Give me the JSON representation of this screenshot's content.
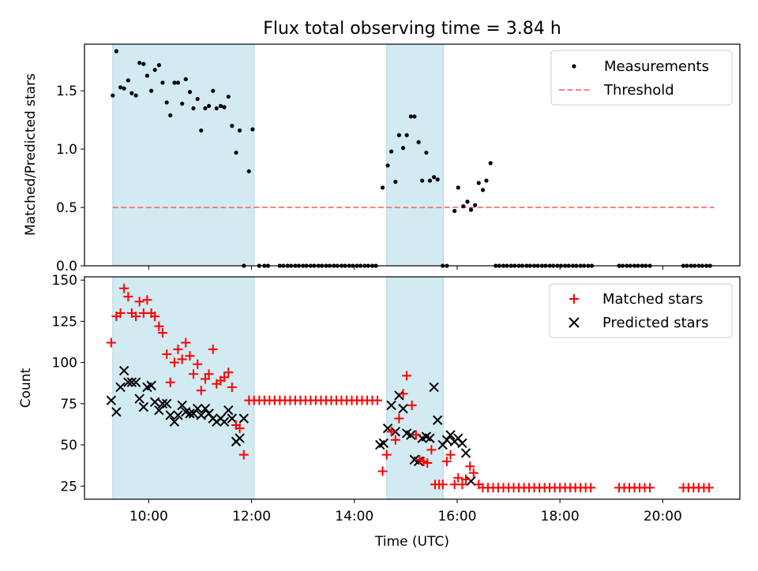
{
  "chart_data": {
    "type": "scatter",
    "title": "Flux total observing time = 3.84 h",
    "xlabel": "Time (UTC)",
    "x_unit": "hours UTC",
    "xlim": [
      8.75,
      21.5
    ],
    "x_ticks": [
      10,
      12,
      14,
      16,
      18,
      20
    ],
    "x_tick_labels": [
      "10:00",
      "12:00",
      "14:00",
      "16:00",
      "18:00",
      "20:00"
    ],
    "shaded_intervals": [
      [
        9.3,
        12.05
      ],
      [
        14.63,
        15.73
      ]
    ],
    "shade_color": "#add8e6",
    "top": {
      "ylabel": "Matched/Predicted stars",
      "ylim": [
        0,
        1.9
      ],
      "y_ticks": [
        0,
        0.5,
        1.0,
        1.5
      ],
      "y_tick_labels": [
        "0.0",
        "0.5",
        "1.0",
        "1.5"
      ],
      "threshold": {
        "value": 0.5,
        "x_range": [
          9.3,
          21.0
        ],
        "color": "#ff7f7f"
      },
      "legend": {
        "position": "upper-right",
        "measurements_label": "Measurements",
        "threshold_label": "Threshold"
      },
      "measurements": [
        [
          9.3,
          1.46
        ],
        [
          9.37,
          1.84
        ],
        [
          9.45,
          1.53
        ],
        [
          9.52,
          1.52
        ],
        [
          9.6,
          1.59
        ],
        [
          9.67,
          1.48
        ],
        [
          9.75,
          1.46
        ],
        [
          9.82,
          1.74
        ],
        [
          9.9,
          1.73
        ],
        [
          9.97,
          1.63
        ],
        [
          10.05,
          1.5
        ],
        [
          10.12,
          1.68
        ],
        [
          10.2,
          1.72
        ],
        [
          10.27,
          1.57
        ],
        [
          10.35,
          1.4
        ],
        [
          10.42,
          1.29
        ],
        [
          10.5,
          1.57
        ],
        [
          10.57,
          1.57
        ],
        [
          10.65,
          1.39
        ],
        [
          10.72,
          1.6
        ],
        [
          10.8,
          1.49
        ],
        [
          10.87,
          1.35
        ],
        [
          10.95,
          1.43
        ],
        [
          11.02,
          1.16
        ],
        [
          11.1,
          1.35
        ],
        [
          11.17,
          1.37
        ],
        [
          11.25,
          1.5
        ],
        [
          11.32,
          1.35
        ],
        [
          11.4,
          1.37
        ],
        [
          11.47,
          1.36
        ],
        [
          11.55,
          1.45
        ],
        [
          11.62,
          1.2
        ],
        [
          11.7,
          0.97
        ],
        [
          11.77,
          1.16
        ],
        [
          11.85,
          0.0
        ],
        [
          11.95,
          0.81
        ],
        [
          12.02,
          1.17
        ],
        [
          12.15,
          0.0
        ],
        [
          12.25,
          0.0
        ],
        [
          12.32,
          0.0
        ],
        [
          12.55,
          0.0
        ],
        [
          12.62,
          0.0
        ],
        [
          12.7,
          0.0
        ],
        [
          12.77,
          0.0
        ],
        [
          12.85,
          0.0
        ],
        [
          12.92,
          0.0
        ],
        [
          13.0,
          0.0
        ],
        [
          13.07,
          0.0
        ],
        [
          13.15,
          0.0
        ],
        [
          13.22,
          0.0
        ],
        [
          13.3,
          0.0
        ],
        [
          13.37,
          0.0
        ],
        [
          13.45,
          0.0
        ],
        [
          13.52,
          0.0
        ],
        [
          13.6,
          0.0
        ],
        [
          13.67,
          0.0
        ],
        [
          13.75,
          0.0
        ],
        [
          13.82,
          0.0
        ],
        [
          13.9,
          0.0
        ],
        [
          13.97,
          0.0
        ],
        [
          14.05,
          0.0
        ],
        [
          14.12,
          0.0
        ],
        [
          14.2,
          0.0
        ],
        [
          14.27,
          0.0
        ],
        [
          14.35,
          0.0
        ],
        [
          14.42,
          0.0
        ],
        [
          14.55,
          0.67
        ],
        [
          14.65,
          0.86
        ],
        [
          14.72,
          0.98
        ],
        [
          14.8,
          0.72
        ],
        [
          14.87,
          1.12
        ],
        [
          14.95,
          1.01
        ],
        [
          15.02,
          1.12
        ],
        [
          15.1,
          1.28
        ],
        [
          15.17,
          1.28
        ],
        [
          15.25,
          1.06
        ],
        [
          15.32,
          0.73
        ],
        [
          15.4,
          0.97
        ],
        [
          15.47,
          0.73
        ],
        [
          15.55,
          0.76
        ],
        [
          15.62,
          0.74
        ],
        [
          15.72,
          0.0
        ],
        [
          15.8,
          0.0
        ],
        [
          15.95,
          0.47
        ],
        [
          16.02,
          0.67
        ],
        [
          16.12,
          0.51
        ],
        [
          16.2,
          0.55
        ],
        [
          16.27,
          0.48
        ],
        [
          16.35,
          0.52
        ],
        [
          16.42,
          0.71
        ],
        [
          16.5,
          0.65
        ],
        [
          16.57,
          0.73
        ],
        [
          16.65,
          0.88
        ],
        [
          16.75,
          0.0
        ],
        [
          16.82,
          0.0
        ],
        [
          16.9,
          0.0
        ],
        [
          16.97,
          0.0
        ],
        [
          17.05,
          0.0
        ],
        [
          17.12,
          0.0
        ],
        [
          17.2,
          0.0
        ],
        [
          17.27,
          0.0
        ],
        [
          17.35,
          0.0
        ],
        [
          17.42,
          0.0
        ],
        [
          17.5,
          0.0
        ],
        [
          17.57,
          0.0
        ],
        [
          17.65,
          0.0
        ],
        [
          17.72,
          0.0
        ],
        [
          17.8,
          0.0
        ],
        [
          17.87,
          0.0
        ],
        [
          17.95,
          0.0
        ],
        [
          18.02,
          0.0
        ],
        [
          18.1,
          0.0
        ],
        [
          18.17,
          0.0
        ],
        [
          18.25,
          0.0
        ],
        [
          18.32,
          0.0
        ],
        [
          18.4,
          0.0
        ],
        [
          18.47,
          0.0
        ],
        [
          18.55,
          0.0
        ],
        [
          18.62,
          0.0
        ],
        [
          19.15,
          0.0
        ],
        [
          19.22,
          0.0
        ],
        [
          19.3,
          0.0
        ],
        [
          19.37,
          0.0
        ],
        [
          19.45,
          0.0
        ],
        [
          19.52,
          0.0
        ],
        [
          19.6,
          0.0
        ],
        [
          19.67,
          0.0
        ],
        [
          19.75,
          0.0
        ],
        [
          20.4,
          0.0
        ],
        [
          20.47,
          0.0
        ],
        [
          20.55,
          0.0
        ],
        [
          20.62,
          0.0
        ],
        [
          20.7,
          0.0
        ],
        [
          20.77,
          0.0
        ],
        [
          20.85,
          0.0
        ],
        [
          20.92,
          0.0
        ]
      ]
    },
    "bottom": {
      "ylabel": "Count",
      "ylim": [
        17,
        152
      ],
      "y_ticks": [
        25,
        50,
        75,
        100,
        125,
        150
      ],
      "y_tick_labels": [
        "25",
        "50",
        "75",
        "100",
        "125",
        "150"
      ],
      "legend": {
        "position": "upper-right",
        "matched_label": "Matched stars",
        "predicted_label": "Predicted stars"
      },
      "matched": [
        [
          9.27,
          112
        ],
        [
          9.37,
          128
        ],
        [
          9.45,
          130
        ],
        [
          9.52,
          145
        ],
        [
          9.6,
          140
        ],
        [
          9.67,
          130
        ],
        [
          9.75,
          128
        ],
        [
          9.82,
          137
        ],
        [
          9.9,
          130
        ],
        [
          9.97,
          138
        ],
        [
          10.05,
          130
        ],
        [
          10.12,
          128
        ],
        [
          10.2,
          122
        ],
        [
          10.27,
          118
        ],
        [
          10.35,
          105
        ],
        [
          10.42,
          88
        ],
        [
          10.5,
          100
        ],
        [
          10.57,
          108
        ],
        [
          10.65,
          102
        ],
        [
          10.72,
          112
        ],
        [
          10.8,
          104
        ],
        [
          10.87,
          93
        ],
        [
          10.95,
          99
        ],
        [
          11.02,
          83
        ],
        [
          11.1,
          90
        ],
        [
          11.17,
          93
        ],
        [
          11.25,
          108
        ],
        [
          11.32,
          87
        ],
        [
          11.4,
          89
        ],
        [
          11.47,
          91
        ],
        [
          11.55,
          94
        ],
        [
          11.62,
          85
        ],
        [
          11.7,
          62
        ],
        [
          11.77,
          60
        ],
        [
          11.85,
          44
        ],
        [
          11.95,
          77
        ],
        [
          12.05,
          77
        ],
        [
          12.15,
          77
        ],
        [
          12.25,
          77
        ],
        [
          12.35,
          77
        ],
        [
          12.45,
          77
        ],
        [
          12.55,
          77
        ],
        [
          12.65,
          77
        ],
        [
          12.75,
          77
        ],
        [
          12.85,
          77
        ],
        [
          12.95,
          77
        ],
        [
          13.05,
          77
        ],
        [
          13.15,
          77
        ],
        [
          13.25,
          77
        ],
        [
          13.35,
          77
        ],
        [
          13.45,
          77
        ],
        [
          13.55,
          77
        ],
        [
          13.65,
          77
        ],
        [
          13.75,
          77
        ],
        [
          13.85,
          77
        ],
        [
          13.95,
          77
        ],
        [
          14.05,
          77
        ],
        [
          14.15,
          77
        ],
        [
          14.25,
          77
        ],
        [
          14.35,
          77
        ],
        [
          14.45,
          77
        ],
        [
          14.55,
          34
        ],
        [
          14.63,
          44
        ],
        [
          14.72,
          58
        ],
        [
          14.8,
          53
        ],
        [
          14.87,
          66
        ],
        [
          14.95,
          81
        ],
        [
          15.02,
          92
        ],
        [
          15.12,
          74
        ],
        [
          15.2,
          56
        ],
        [
          15.27,
          41
        ],
        [
          15.35,
          40
        ],
        [
          15.42,
          39
        ],
        [
          15.5,
          47
        ],
        [
          15.57,
          26
        ],
        [
          15.65,
          26
        ],
        [
          15.72,
          26
        ],
        [
          15.8,
          40
        ],
        [
          15.87,
          44
        ],
        [
          15.95,
          26
        ],
        [
          16.02,
          30
        ],
        [
          16.1,
          26
        ],
        [
          16.17,
          29
        ],
        [
          16.25,
          37
        ],
        [
          16.32,
          33
        ],
        [
          16.42,
          26
        ],
        [
          16.5,
          24
        ],
        [
          16.6,
          24
        ],
        [
          16.7,
          24
        ],
        [
          16.8,
          24
        ],
        [
          16.9,
          24
        ],
        [
          17.0,
          24
        ],
        [
          17.1,
          24
        ],
        [
          17.2,
          24
        ],
        [
          17.3,
          24
        ],
        [
          17.4,
          24
        ],
        [
          17.5,
          24
        ],
        [
          17.6,
          24
        ],
        [
          17.7,
          24
        ],
        [
          17.8,
          24
        ],
        [
          17.9,
          24
        ],
        [
          18.0,
          24
        ],
        [
          18.1,
          24
        ],
        [
          18.2,
          24
        ],
        [
          18.3,
          24
        ],
        [
          18.4,
          24
        ],
        [
          18.5,
          24
        ],
        [
          18.6,
          24
        ],
        [
          19.15,
          24
        ],
        [
          19.25,
          24
        ],
        [
          19.35,
          24
        ],
        [
          19.45,
          24
        ],
        [
          19.55,
          24
        ],
        [
          19.65,
          24
        ],
        [
          19.75,
          24
        ],
        [
          20.4,
          24
        ],
        [
          20.5,
          24
        ],
        [
          20.6,
          24
        ],
        [
          20.7,
          24
        ],
        [
          20.8,
          24
        ],
        [
          20.9,
          24
        ]
      ],
      "predicted": [
        [
          9.27,
          77
        ],
        [
          9.37,
          70
        ],
        [
          9.45,
          85
        ],
        [
          9.52,
          95
        ],
        [
          9.6,
          88
        ],
        [
          9.67,
          88
        ],
        [
          9.75,
          88
        ],
        [
          9.82,
          78
        ],
        [
          9.9,
          73
        ],
        [
          9.97,
          85
        ],
        [
          10.05,
          86
        ],
        [
          10.12,
          76
        ],
        [
          10.2,
          71
        ],
        [
          10.27,
          75
        ],
        [
          10.35,
          75
        ],
        [
          10.42,
          68
        ],
        [
          10.5,
          64
        ],
        [
          10.57,
          68
        ],
        [
          10.65,
          74
        ],
        [
          10.72,
          70
        ],
        [
          10.8,
          69
        ],
        [
          10.87,
          69
        ],
        [
          10.95,
          72
        ],
        [
          11.02,
          68
        ],
        [
          11.1,
          72
        ],
        [
          11.17,
          69
        ],
        [
          11.25,
          66
        ],
        [
          11.32,
          64
        ],
        [
          11.4,
          66
        ],
        [
          11.47,
          64
        ],
        [
          11.55,
          71
        ],
        [
          11.62,
          66
        ],
        [
          11.7,
          52
        ],
        [
          11.77,
          54
        ],
        [
          11.85,
          66
        ],
        [
          14.5,
          50
        ],
        [
          14.57,
          51
        ],
        [
          14.65,
          60
        ],
        [
          14.72,
          74
        ],
        [
          14.8,
          58
        ],
        [
          14.87,
          80
        ],
        [
          14.95,
          72
        ],
        [
          15.02,
          57
        ],
        [
          15.1,
          56
        ],
        [
          15.17,
          41
        ],
        [
          15.25,
          40
        ],
        [
          15.32,
          54
        ],
        [
          15.4,
          55
        ],
        [
          15.47,
          54
        ],
        [
          15.55,
          85
        ],
        [
          15.62,
          65
        ],
        [
          15.72,
          50
        ],
        [
          15.8,
          53
        ],
        [
          15.87,
          56
        ],
        [
          15.95,
          52
        ],
        [
          16.02,
          54
        ],
        [
          16.1,
          51
        ],
        [
          16.17,
          45
        ],
        [
          16.27,
          28
        ]
      ]
    }
  }
}
